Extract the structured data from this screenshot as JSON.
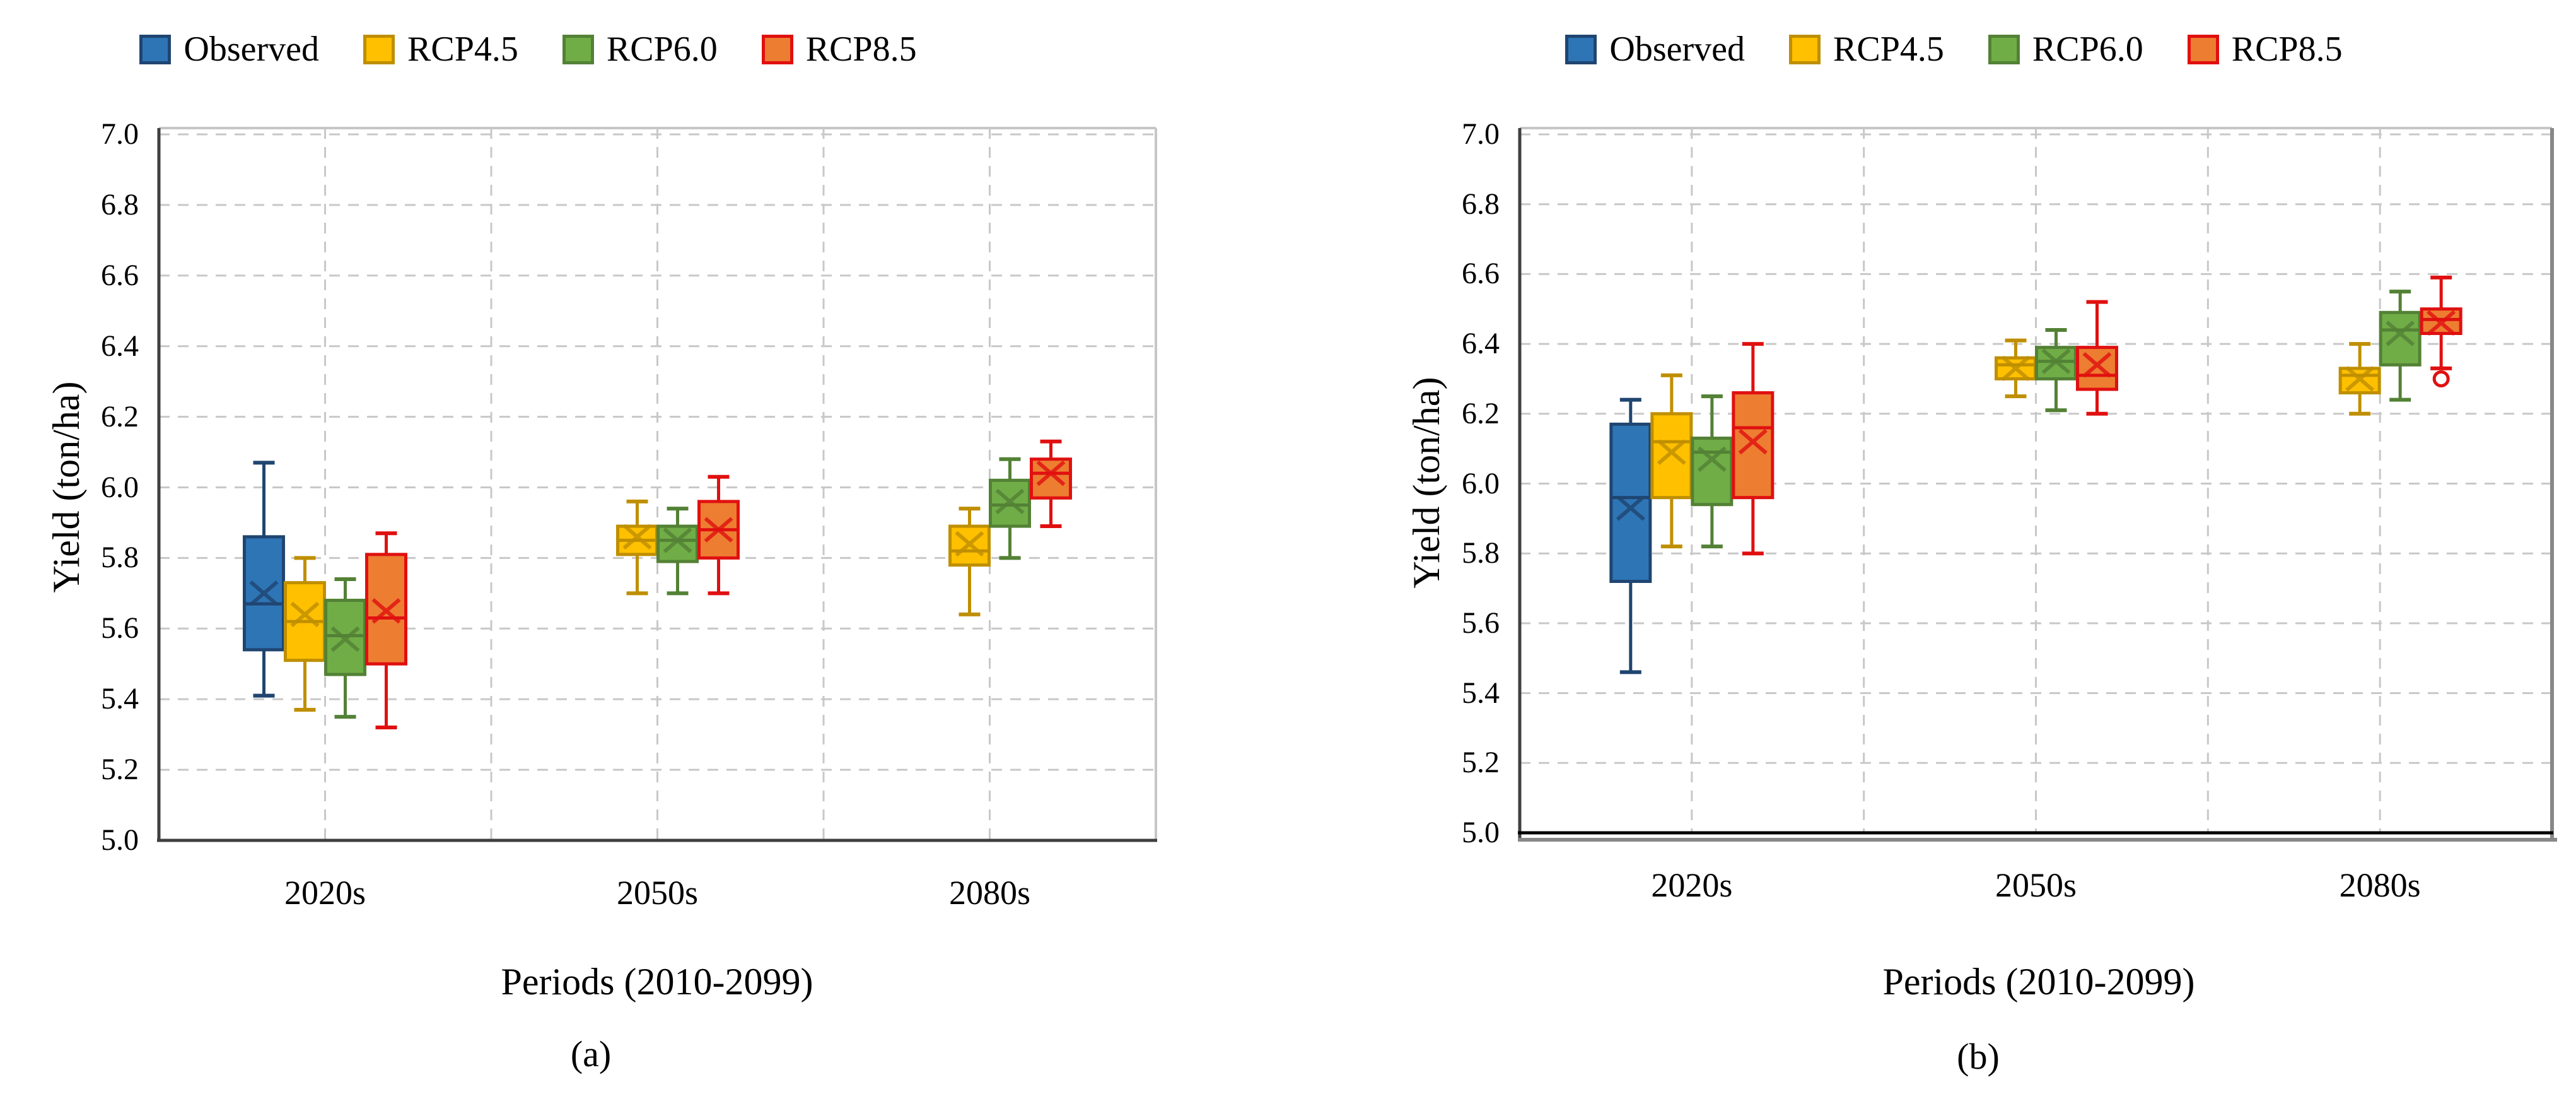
{
  "figure": {
    "background": "#ffffff"
  },
  "panels": [
    {
      "caption": "(a)"
    },
    {
      "caption": "(b)"
    }
  ],
  "legend": {
    "items": [
      "Observed",
      "RCP4.5",
      "RCP6.0",
      "RCP8.5"
    ]
  },
  "colors": {
    "observed_fill": "#2E75B6",
    "observed_stroke": "#1F4571",
    "rcp45_fill": "#FFC000",
    "rcp45_stroke": "#BF8F00",
    "rcp60_fill": "#70AD47",
    "rcp60_stroke": "#538135",
    "rcp85_fill": "#ED7D31",
    "rcp85_stroke": "#E01010",
    "gridline": "#c8c8c8",
    "axis": "#3f3f3f",
    "panel_b_base_black": "#000000",
    "panel_b_base_gray": "#878787"
  },
  "chart_data": [
    {
      "type": "boxplot",
      "panel": "a",
      "title": "",
      "xlabel": "Periods (2010-2099)",
      "ylabel": "Yield (ton/ha)",
      "ylim": [
        5.0,
        7.0
      ],
      "ytick_step": 0.2,
      "yticks": [
        "5.0",
        "5.2",
        "5.4",
        "5.6",
        "5.8",
        "6.0",
        "6.2",
        "6.4",
        "6.6",
        "6.8",
        "7.0"
      ],
      "grid": true,
      "legend_position": "top",
      "categories": [
        "2020s",
        "2050s",
        "2080s"
      ],
      "series": [
        {
          "name": "Observed",
          "fill": "#2E75B6",
          "stroke": "#1F4571",
          "boxes": [
            {
              "low": 5.41,
              "q1": 5.54,
              "median": 5.67,
              "mean": 5.7,
              "q3": 5.86,
              "high": 6.07
            },
            null,
            null
          ]
        },
        {
          "name": "RCP4.5",
          "fill": "#FFC000",
          "stroke": "#BF8F00",
          "boxes": [
            {
              "low": 5.37,
              "q1": 5.51,
              "median": 5.62,
              "mean": 5.64,
              "q3": 5.73,
              "high": 5.8
            },
            {
              "low": 5.7,
              "q1": 5.81,
              "median": 5.85,
              "mean": 5.86,
              "q3": 5.89,
              "high": 5.96
            },
            {
              "low": 5.64,
              "q1": 5.78,
              "median": 5.82,
              "mean": 5.84,
              "q3": 5.89,
              "high": 5.94
            }
          ]
        },
        {
          "name": "RCP6.0",
          "fill": "#70AD47",
          "stroke": "#538135",
          "boxes": [
            {
              "low": 5.35,
              "q1": 5.47,
              "median": 5.58,
              "mean": 5.57,
              "q3": 5.68,
              "high": 5.74
            },
            {
              "low": 5.7,
              "q1": 5.79,
              "median": 5.85,
              "mean": 5.85,
              "q3": 5.89,
              "high": 5.94
            },
            {
              "low": 5.8,
              "q1": 5.89,
              "median": 5.95,
              "mean": 5.96,
              "q3": 6.02,
              "high": 6.08
            }
          ]
        },
        {
          "name": "RCP8.5",
          "fill": "#ED7D31",
          "stroke": "#E01010",
          "boxes": [
            {
              "low": 5.32,
              "q1": 5.5,
              "median": 5.63,
              "mean": 5.65,
              "q3": 5.81,
              "high": 5.87
            },
            {
              "low": 5.7,
              "q1": 5.8,
              "median": 5.88,
              "mean": 5.88,
              "q3": 5.96,
              "high": 6.03
            },
            {
              "low": 5.89,
              "q1": 5.97,
              "median": 6.04,
              "mean": 6.04,
              "q3": 6.08,
              "high": 6.13
            }
          ]
        }
      ]
    },
    {
      "type": "boxplot",
      "panel": "b",
      "title": "",
      "xlabel": "Periods (2010-2099)",
      "ylabel": "Yield (ton/ha)",
      "ylim": [
        5.0,
        7.0
      ],
      "ytick_step": 0.2,
      "yticks": [
        "5.0",
        "5.2",
        "5.4",
        "5.6",
        "5.8",
        "6.0",
        "6.2",
        "6.4",
        "6.6",
        "6.8",
        "7.0"
      ],
      "grid": true,
      "legend_position": "top",
      "categories": [
        "2020s",
        "2050s",
        "2080s"
      ],
      "series": [
        {
          "name": "Observed",
          "fill": "#2E75B6",
          "stroke": "#1F4571",
          "boxes": [
            {
              "low": 5.46,
              "q1": 5.72,
              "median": 5.96,
              "mean": 5.93,
              "q3": 6.17,
              "high": 6.24
            },
            null,
            null
          ]
        },
        {
          "name": "RCP4.5",
          "fill": "#FFC000",
          "stroke": "#BF8F00",
          "boxes": [
            {
              "low": 5.82,
              "q1": 5.96,
              "median": 6.12,
              "mean": 6.09,
              "q3": 6.2,
              "high": 6.31
            },
            {
              "low": 6.25,
              "q1": 6.3,
              "median": 6.34,
              "mean": 6.33,
              "q3": 6.36,
              "high": 6.41
            },
            {
              "low": 6.2,
              "q1": 6.26,
              "median": 6.31,
              "mean": 6.3,
              "q3": 6.33,
              "high": 6.4
            }
          ]
        },
        {
          "name": "RCP6.0",
          "fill": "#70AD47",
          "stroke": "#538135",
          "boxes": [
            {
              "low": 5.82,
              "q1": 5.94,
              "median": 6.09,
              "mean": 6.07,
              "q3": 6.13,
              "high": 6.25
            },
            {
              "low": 6.21,
              "q1": 6.3,
              "median": 6.35,
              "mean": 6.35,
              "q3": 6.39,
              "high": 6.44
            },
            {
              "low": 6.24,
              "q1": 6.34,
              "median": 6.44,
              "mean": 6.43,
              "q3": 6.49,
              "high": 6.55
            }
          ]
        },
        {
          "name": "RCP8.5",
          "fill": "#ED7D31",
          "stroke": "#E01010",
          "boxes": [
            {
              "low": 5.8,
              "q1": 5.96,
              "median": 6.16,
              "mean": 6.12,
              "q3": 6.26,
              "high": 6.4
            },
            {
              "low": 6.2,
              "q1": 6.27,
              "median": 6.31,
              "mean": 6.34,
              "q3": 6.39,
              "high": 6.52
            },
            {
              "low": 6.33,
              "q1": 6.43,
              "median": 6.47,
              "mean": 6.46,
              "q3": 6.5,
              "high": 6.59,
              "outliers": [
                6.3
              ]
            }
          ]
        }
      ]
    }
  ]
}
